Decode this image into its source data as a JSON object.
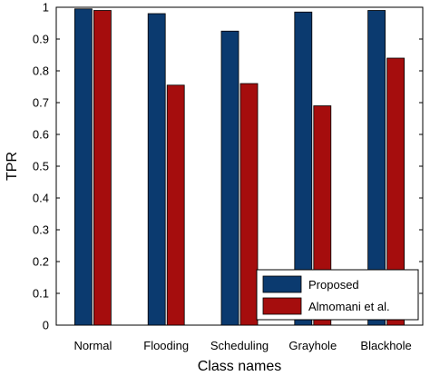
{
  "chart_data": {
    "type": "bar",
    "title": "",
    "xlabel": "Class names",
    "ylabel": "TPR",
    "categories": [
      "Normal",
      "Flooding",
      "Scheduling",
      "Grayhole",
      "Blackhole"
    ],
    "series": [
      {
        "name": "Proposed",
        "color": "#0b3a6f",
        "values": [
          0.995,
          0.98,
          0.925,
          0.985,
          0.99
        ]
      },
      {
        "name": "Almomani et al.",
        "color": "#a50d0d",
        "values": [
          0.99,
          0.755,
          0.76,
          0.69,
          0.84
        ]
      }
    ],
    "ylim": [
      0,
      1
    ],
    "yticks": [
      "0",
      "0.1",
      "0.2",
      "0.3",
      "0.4",
      "0.5",
      "0.6",
      "0.7",
      "0.8",
      "0.9",
      "1"
    ],
    "grid": false,
    "legend_position": "bottom-right"
  }
}
